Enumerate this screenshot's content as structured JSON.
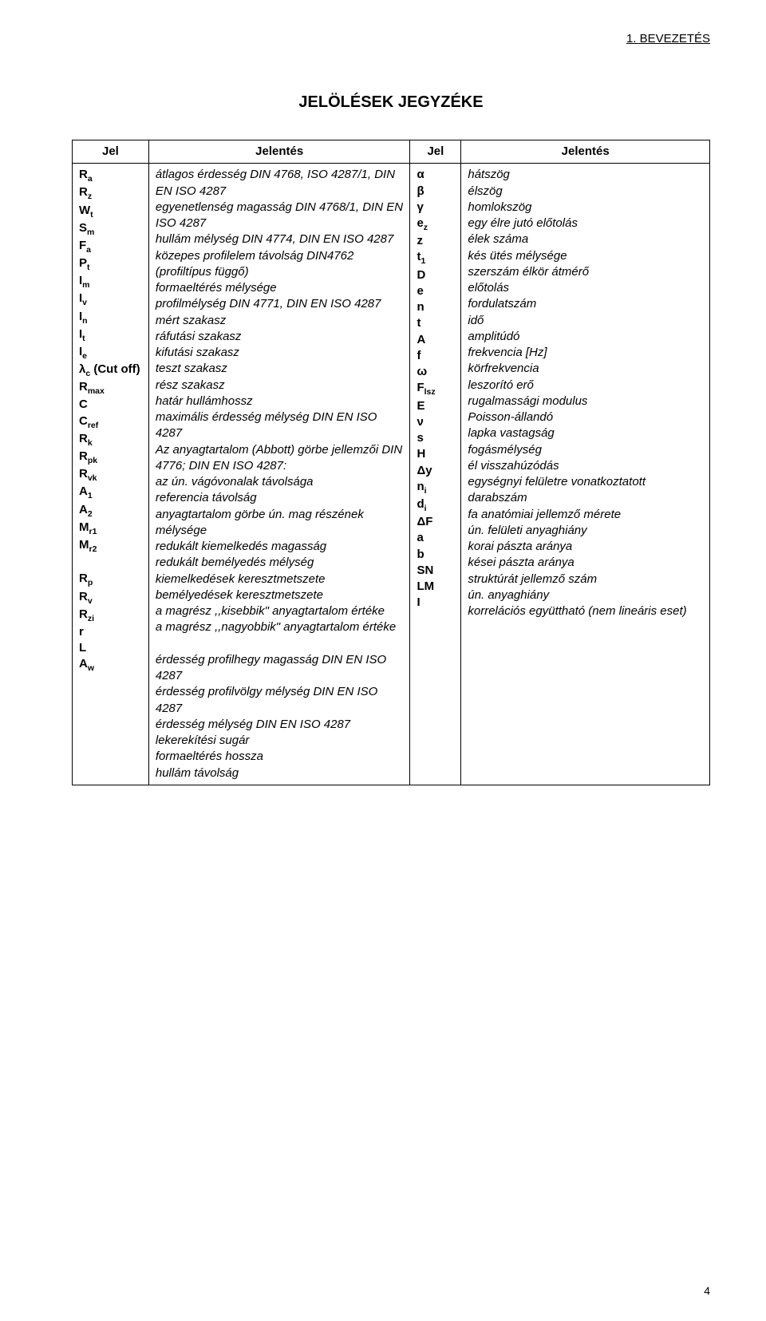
{
  "header_right": "1.   BEVEZETÉS",
  "title": "JELÖLÉSEK JEGYZÉKE",
  "col_headers": {
    "sym1": "Jel",
    "desc1": "Jelentés",
    "sym2": "Jel",
    "desc2": "Jelentés"
  },
  "left": [
    {
      "sym": "R<sub>a</sub>",
      "desc": "átlagos érdesség DIN 4768, ISO 4287/1, DIN EN ISO 4287"
    },
    {
      "sym": "R<sub>z</sub>",
      "desc": "egyenetlenség magasság DIN 4768/1, DIN EN ISO 4287"
    },
    {
      "sym": "W<sub>t</sub>",
      "desc": "hullám mélység DIN 4774, DIN EN ISO 4287"
    },
    {
      "sym": "S<sub>m</sub>",
      "desc": "közepes profilelem távolság DIN4762 (profiltípus függő)"
    },
    {
      "sym": "F<sub>a</sub>",
      "desc": "formaeltérés mélysége"
    },
    {
      "sym": "P<sub>t</sub>",
      "desc": "profilmélység DIN 4771, DIN EN ISO 4287"
    },
    {
      "sym": "I<sub>m</sub>",
      "desc": "mért szakasz"
    },
    {
      "sym": "I<sub>v</sub>",
      "desc": "ráfutási szakasz"
    },
    {
      "sym": "I<sub>n</sub>",
      "desc": "kifutási szakasz"
    },
    {
      "sym": "I<sub>t</sub>",
      "desc": "teszt szakasz"
    },
    {
      "sym": "I<sub>e</sub>",
      "desc": "rész szakasz"
    },
    {
      "sym": "λ<sub>c</sub> (Cut off)",
      "desc": "határ hullámhossz"
    },
    {
      "sym": "R<sub>max</sub>",
      "desc": "maximális érdesség mélység DIN EN ISO 4287"
    },
    {
      "sym": "",
      "desc": "Az anyagtartalom (Abbott) görbe jellemzői DIN 4776; DIN EN ISO 4287:"
    },
    {
      "sym": "C",
      "desc": "az ún. vágóvonalak távolsága"
    },
    {
      "sym": "C<sub>ref</sub>",
      "desc": "referencia távolság"
    },
    {
      "sym": "R<sub>k</sub>",
      "desc": "anyagtartalom görbe ún. mag részének mélysége"
    },
    {
      "sym": "R<sub>pk</sub>",
      "desc": "redukált kiemelkedés magasság"
    },
    {
      "sym": "R<sub>vk</sub>",
      "desc": "redukált bemélyedés mélység"
    },
    {
      "sym": "A<sub>1</sub>",
      "desc": "kiemelkedések keresztmetszete"
    },
    {
      "sym": "A<sub>2</sub>",
      "desc": "bemélyedések keresztmetszete"
    },
    {
      "sym": "M<sub>r1</sub>",
      "desc": "a magrész ,,kisebbik\" anyagtartalom értéke"
    },
    {
      "sym": "M<sub>r2</sub>",
      "desc": "a magrész ,,nagyobbik\" anyagtartalom értéke"
    },
    {
      "sym": "&nbsp;",
      "desc": "&nbsp;"
    },
    {
      "sym": "R<sub>p</sub>",
      "desc": "érdesség profilhegy magasság DIN EN ISO 4287"
    },
    {
      "sym": "R<sub>v</sub>",
      "desc": "érdesség profilvölgy mélység DIN EN ISO 4287"
    },
    {
      "sym": "R<sub>zi</sub>",
      "desc": "érdesség mélység DIN EN ISO 4287"
    },
    {
      "sym": "r",
      "desc": "lekerekítési sugár"
    },
    {
      "sym": "L",
      "desc": "formaeltérés hossza"
    },
    {
      "sym": "A<sub>w</sub>",
      "desc": "hullám távolság"
    }
  ],
  "right": [
    {
      "sym": "α",
      "desc": "hátszög"
    },
    {
      "sym": "β",
      "desc": "élszög"
    },
    {
      "sym": "γ",
      "desc": "homlokszög"
    },
    {
      "sym": "e<sub>z</sub>",
      "desc": "egy élre jutó előtolás"
    },
    {
      "sym": "z",
      "desc": "élek száma"
    },
    {
      "sym": "t<sub>1</sub>",
      "desc": "kés ütés mélysége"
    },
    {
      "sym": "D",
      "desc": "szerszám élkör átmérő"
    },
    {
      "sym": "e",
      "desc": "előtolás"
    },
    {
      "sym": "n",
      "desc": "fordulatszám"
    },
    {
      "sym": "t",
      "desc": "idő"
    },
    {
      "sym": "A",
      "desc": "amplitúdó"
    },
    {
      "sym": "f",
      "desc": "frekvencia [Hz]"
    },
    {
      "sym": "ω",
      "desc": "körfrekvencia"
    },
    {
      "sym": "F<sub>lsz</sub>",
      "desc": "leszorító erő"
    },
    {
      "sym": "E",
      "desc": "rugalmassági modulus"
    },
    {
      "sym": "ν",
      "desc": "Poisson-állandó"
    },
    {
      "sym": "s",
      "desc": "lapka vastagság"
    },
    {
      "sym": "H",
      "desc": "fogásmélység"
    },
    {
      "sym": "Δy",
      "desc": "él visszahúzódás"
    },
    {
      "sym": "n<sub>i</sub>",
      "desc": "egységnyi felületre vonatkoztatott darabszám"
    },
    {
      "sym": "d<sub>i</sub>",
      "desc": "fa anatómiai jellemző mérete"
    },
    {
      "sym": "ΔF",
      "desc": "ún. felületi anyaghiány"
    },
    {
      "sym": "a",
      "desc": "korai pászta aránya"
    },
    {
      "sym": "b",
      "desc": "kései pászta aránya"
    },
    {
      "sym": "SN",
      "desc": "struktúrát jellemző szám"
    },
    {
      "sym": "LM",
      "desc": "ún. anyaghiány"
    },
    {
      "sym": "I",
      "desc": "korrelációs együttható (nem lineáris eset)"
    }
  ],
  "page_number": "4"
}
